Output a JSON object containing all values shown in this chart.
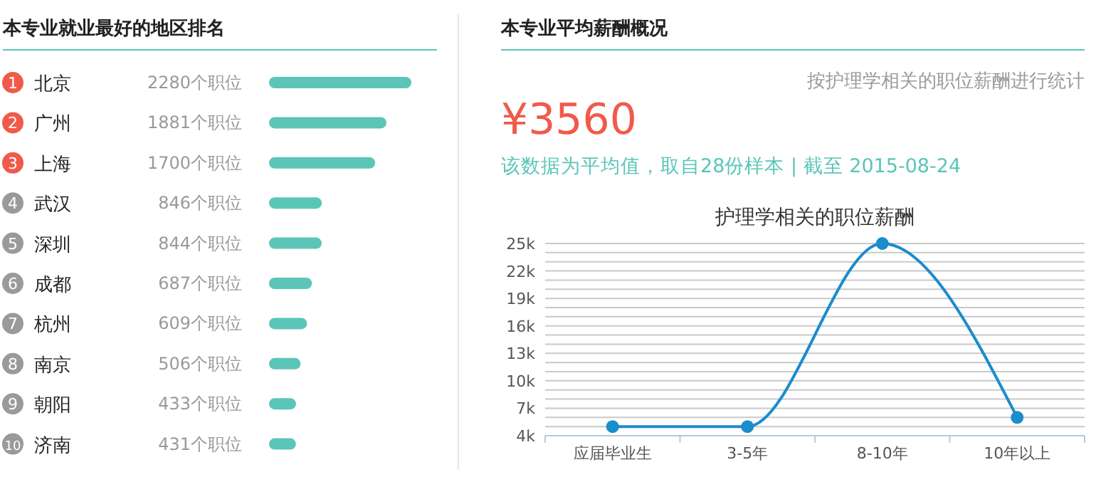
{
  "chart_data": [
    {
      "type": "bar",
      "orientation": "horizontal",
      "title": "本专业就业最好的地区排名",
      "categories": [
        "北京",
        "广州",
        "上海",
        "武汉",
        "深圳",
        "成都",
        "杭州",
        "南京",
        "朝阳",
        "济南"
      ],
      "values": [
        2280,
        1881,
        1700,
        846,
        844,
        687,
        609,
        506,
        433,
        431
      ],
      "value_labels": [
        "2280个职位",
        "1881个职位",
        "1700个职位",
        "846个职位",
        "844个职位",
        "687个职位",
        "609个职位",
        "506个职位",
        "433个职位",
        "431个职位"
      ],
      "color": "#5bc5b8",
      "annotations": [
        "1",
        "2",
        "3",
        "4",
        "5",
        "6",
        "7",
        "8",
        "9",
        "10"
      ]
    },
    {
      "type": "other",
      "title": "本专业平均薪酬概况",
      "annotations": [
        "按护理学相关的职位薪酬进行统计",
        "¥3560",
        "该数据为平均值，取自28份样本 | 截至 2015-08-24"
      ]
    },
    {
      "type": "line",
      "title": "护理学相关的职位薪酬",
      "categories": [
        "应届毕业生",
        "3-5年",
        "8-10年",
        "10年以上"
      ],
      "series": [
        {
          "color": "#1b8ccc",
          "values": [
            5000,
            5000,
            25000,
            6000
          ]
        }
      ],
      "ylim": [
        4000,
        25000
      ],
      "yticks": [
        {
          "value": 4000,
          "label": "4k"
        },
        {
          "value": 5000,
          "label": null
        },
        {
          "value": 6000,
          "label": null
        },
        {
          "value": 7000,
          "label": "7k"
        },
        {
          "value": 8000,
          "label": null
        },
        {
          "value": 9000,
          "label": null
        },
        {
          "value": 10000,
          "label": "10k"
        },
        {
          "value": 11000,
          "label": null
        },
        {
          "value": 12000,
          "label": null
        },
        {
          "value": 13000,
          "label": "13k"
        },
        {
          "value": 14000,
          "label": null
        },
        {
          "value": 15000,
          "label": null
        },
        {
          "value": 16000,
          "label": "16k"
        },
        {
          "value": 17000,
          "label": null
        },
        {
          "value": 18000,
          "label": null
        },
        {
          "value": 19000,
          "label": "19k"
        },
        {
          "value": 20000,
          "label": null
        },
        {
          "value": 21000,
          "label": null
        },
        {
          "value": 22000,
          "label": "22k"
        },
        {
          "value": 23000,
          "label": null
        },
        {
          "value": 24000,
          "label": null
        },
        {
          "value": 25000,
          "label": "25k"
        }
      ],
      "grid": "y",
      "marker": "circle",
      "line_style": "solid"
    }
  ]
}
